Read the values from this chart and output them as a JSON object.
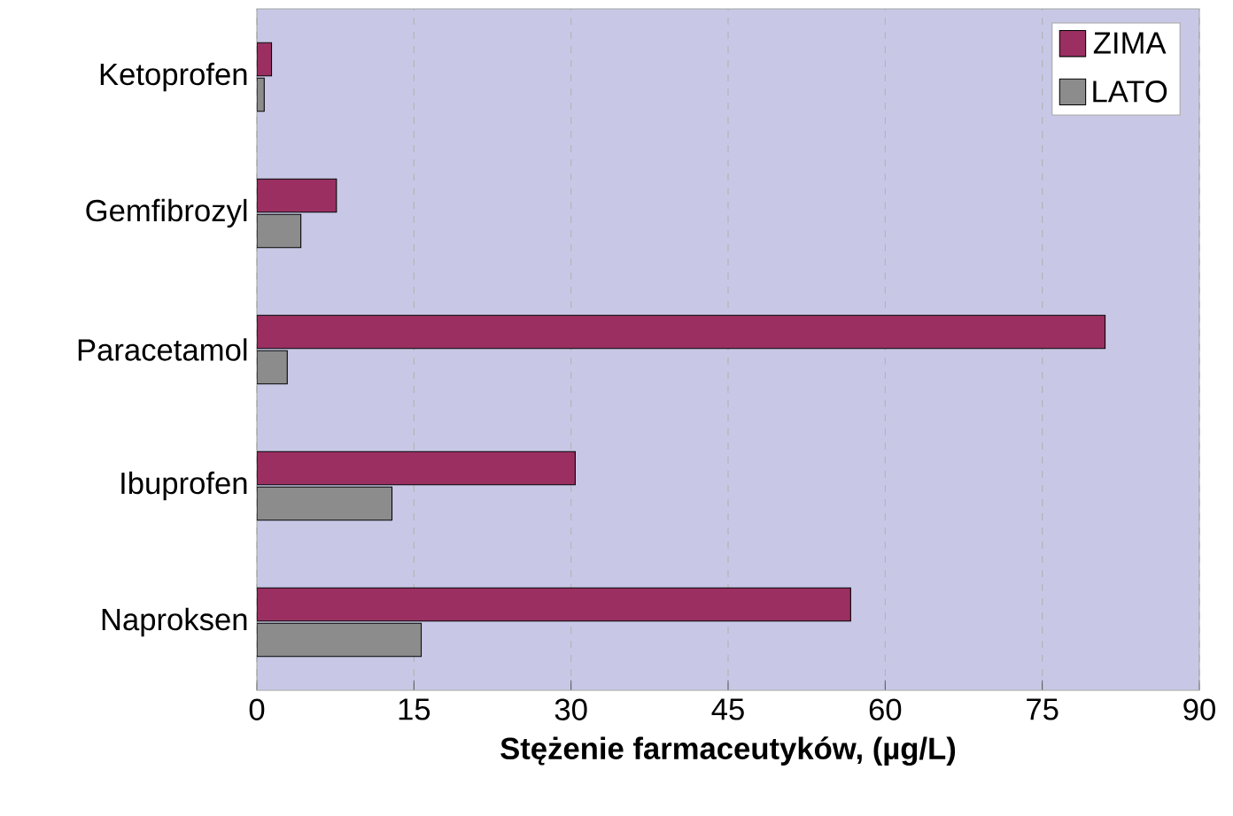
{
  "chart_data": {
    "type": "bar",
    "orientation": "horizontal",
    "xlabel": "Stężenie farmaceutyków, (µg/L)",
    "categories": [
      "Ketoprofen",
      "Gemfibrozyl",
      "Paracetamol",
      "Ibuprofen",
      "Naproksen"
    ],
    "series": [
      {
        "name": "ZIMA",
        "color": "#9b2f62",
        "values": [
          1.4,
          7.6,
          81,
          30.4,
          56.7
        ]
      },
      {
        "name": "LATO",
        "color": "#8c8c8c",
        "values": [
          0.7,
          4.2,
          2.9,
          12.9,
          15.7
        ]
      }
    ],
    "xlim": [
      0,
      90
    ],
    "xticks": [
      0,
      15,
      30,
      45,
      60,
      75,
      90
    ],
    "grid": "x",
    "legend": "top right"
  }
}
